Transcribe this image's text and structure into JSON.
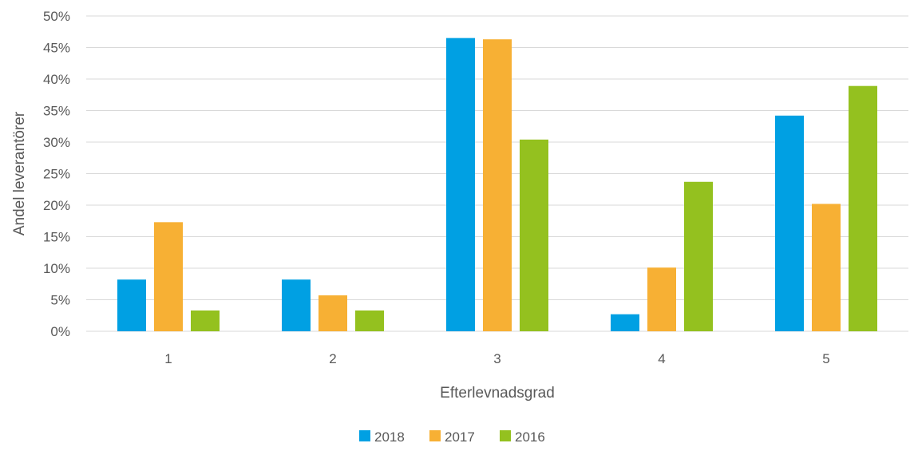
{
  "chart_data": {
    "type": "bar",
    "categories": [
      "1",
      "2",
      "3",
      "4",
      "5"
    ],
    "series": [
      {
        "name": "2018",
        "color": "#00A0E3",
        "values": [
          8.2,
          8.2,
          46.5,
          2.7,
          34.2
        ]
      },
      {
        "name": "2017",
        "color": "#F7B034",
        "values": [
          17.3,
          5.7,
          46.3,
          10.1,
          20.2
        ]
      },
      {
        "name": "2016",
        "color": "#94C11F",
        "values": [
          3.3,
          3.3,
          30.4,
          23.7,
          38.9
        ]
      }
    ],
    "xlabel": "Efterlevnadsgrad",
    "ylabel": "Andel leverantörer",
    "ylim": [
      0,
      50
    ],
    "y_ticks": [
      "0%",
      "5%",
      "10%",
      "15%",
      "20%",
      "25%",
      "30%",
      "35%",
      "40%",
      "45%",
      "50%"
    ],
    "grid": true,
    "legend_position": "bottom",
    "gridline_color": "#D9D9D9"
  }
}
